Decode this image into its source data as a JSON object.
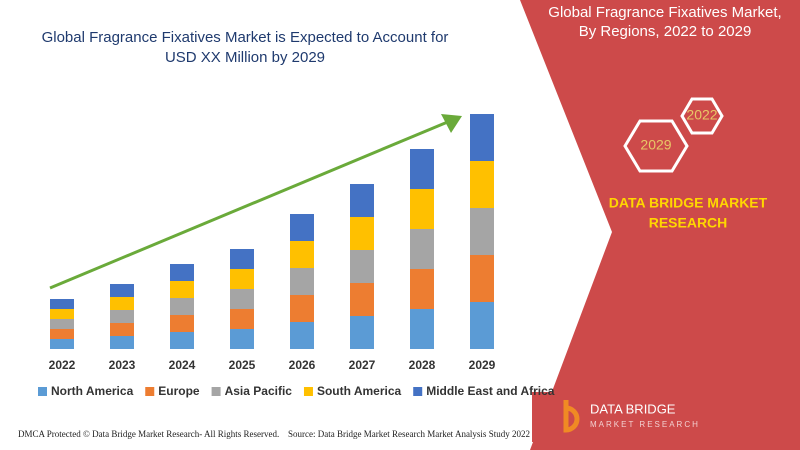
{
  "chart_data": {
    "type": "stacked-bar",
    "title": [
      "Global Fragrance Fixatives Market is Expected to Account for",
      "USD XX Million by 2029"
    ],
    "categories": [
      "2022",
      "2023",
      "2024",
      "2025",
      "2026",
      "2027",
      "2028",
      "2029"
    ],
    "series": [
      {
        "name": "North America",
        "color": "#5b9bd5",
        "values": [
          10,
          13,
          17,
          20,
          27,
          33,
          40,
          47
        ]
      },
      {
        "name": "Europe",
        "color": "#ed7d31",
        "values": [
          10,
          13,
          17,
          20,
          27,
          33,
          40,
          47
        ]
      },
      {
        "name": "Asia Pacific",
        "color": "#a5a5a5",
        "values": [
          10,
          13,
          17,
          20,
          27,
          33,
          40,
          47
        ]
      },
      {
        "name": "South America",
        "color": "#ffc000",
        "values": [
          10,
          13,
          17,
          20,
          27,
          33,
          40,
          47
        ]
      },
      {
        "name": "Middle East and Africa",
        "color": "#4472c4",
        "values": [
          10,
          13,
          17,
          20,
          27,
          33,
          40,
          47
        ]
      }
    ]
  },
  "panel": {
    "title": [
      "Global Fragrance Fixatives Market,",
      "By Regions, 2022 to 2029"
    ],
    "hexagons": [
      "2022",
      "2029"
    ],
    "brand": [
      "DATA BRIDGE MARKET",
      "RESEARCH"
    ]
  },
  "logo": {
    "name": "DATA BRIDGE",
    "tagline": "MARKET RESEARCH"
  },
  "footer": {
    "left": "DMCA Protected © Data Bridge Market Research- All Rights Reserved.",
    "right": "Source: Data Bridge Market Research Market Analysis Study 2022"
  }
}
